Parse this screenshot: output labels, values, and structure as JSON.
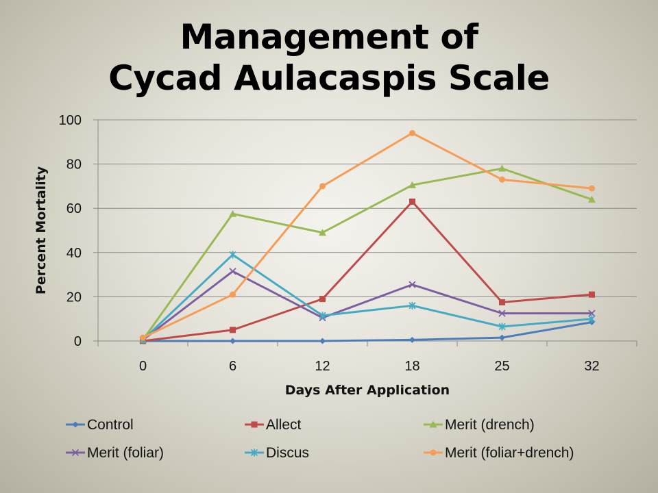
{
  "slide": {
    "title_line1": "Management of",
    "title_line2": "Cycad Aulacaspis Scale"
  },
  "chart_data": {
    "type": "line",
    "title": "Management of Cycad Aulacaspis Scale",
    "xlabel": "Days After Application",
    "ylabel": "Percent Mortality",
    "categories": [
      "0",
      "6",
      "12",
      "18",
      "25",
      "32"
    ],
    "ylim": [
      0,
      100
    ],
    "yticks": [
      0,
      20,
      40,
      60,
      80,
      100
    ],
    "grid": "horizontal",
    "legend_position": "bottom",
    "series": [
      {
        "name": "Control",
        "color": "#4a7ebb",
        "marker": "diamond",
        "values": [
          0,
          0,
          0,
          0.5,
          1.5,
          8.5
        ]
      },
      {
        "name": "Allect",
        "color": "#be4b48",
        "marker": "square",
        "values": [
          0,
          5,
          19,
          63,
          17.5,
          21
        ]
      },
      {
        "name": "Merit (drench)",
        "color": "#98b954",
        "marker": "triangle",
        "values": [
          0.5,
          57.5,
          49,
          70.5,
          78,
          64
        ]
      },
      {
        "name": "Merit (foliar)",
        "color": "#7d5fa0",
        "marker": "x",
        "values": [
          0.5,
          31.5,
          10.5,
          25.5,
          12.5,
          12.5
        ]
      },
      {
        "name": "Discus",
        "color": "#46aac5",
        "marker": "star",
        "values": [
          0.5,
          39,
          11.5,
          16,
          6.5,
          10
        ]
      },
      {
        "name": "Merit (foliar+drench)",
        "color": "#f59d56",
        "marker": "circle",
        "values": [
          1.5,
          21,
          70,
          94,
          73,
          69
        ]
      }
    ]
  }
}
